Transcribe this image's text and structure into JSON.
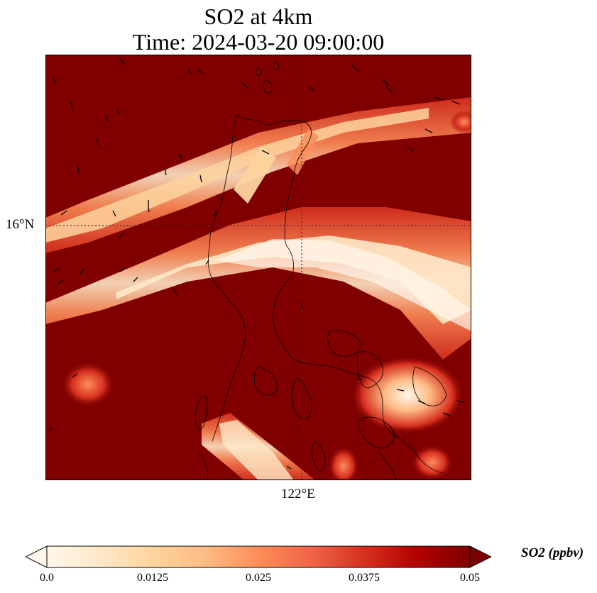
{
  "title": {
    "line1": "SO2 at 4km",
    "line2": "Time: 2024-03-20 09:00:00"
  },
  "map": {
    "lat_label": "16°N",
    "lon_label": "122°E",
    "graticule": "dotted",
    "background_color": "#800000",
    "coastline_color": "#000000",
    "wind_arrow_color": "#000000"
  },
  "colorbar": {
    "label": "SO2 (ppbv)",
    "ticks": [
      "0.0",
      "0.0125",
      "0.025",
      "0.0375",
      "0.05"
    ],
    "colormap": [
      "#fff7ec",
      "#fee8c8",
      "#fdd49e",
      "#fdbb84",
      "#fc8d59",
      "#ef6548",
      "#d7301f",
      "#b30000",
      "#7f0000"
    ],
    "extend": "both"
  }
}
